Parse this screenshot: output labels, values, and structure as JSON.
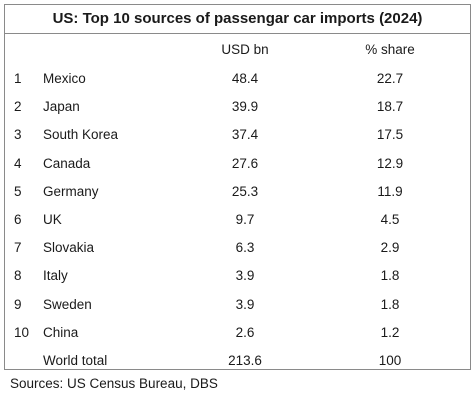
{
  "title": "US: Top 10 sources of passengar car imports (2024)",
  "columns": {
    "rank": "",
    "country": "",
    "usd": "USD bn",
    "share": "% share"
  },
  "rows": [
    {
      "rank": "1",
      "country": "Mexico",
      "usd": "48.4",
      "share": "22.7"
    },
    {
      "rank": "2",
      "country": "Japan",
      "usd": "39.9",
      "share": "18.7"
    },
    {
      "rank": "3",
      "country": "South Korea",
      "usd": "37.4",
      "share": "17.5"
    },
    {
      "rank": "4",
      "country": "Canada",
      "usd": "27.6",
      "share": "12.9"
    },
    {
      "rank": "5",
      "country": "Germany",
      "usd": "25.3",
      "share": "11.9"
    },
    {
      "rank": "6",
      "country": "UK",
      "usd": "9.7",
      "share": "4.5"
    },
    {
      "rank": "7",
      "country": "Slovakia",
      "usd": "6.3",
      "share": "2.9"
    },
    {
      "rank": "8",
      "country": "Italy",
      "usd": "3.9",
      "share": "1.8"
    },
    {
      "rank": "9",
      "country": "Sweden",
      "usd": "3.9",
      "share": "1.8"
    },
    {
      "rank": "10",
      "country": "China",
      "usd": "2.6",
      "share": "1.2"
    }
  ],
  "total": {
    "rank": "",
    "country": "World total",
    "usd": "213.6",
    "share": "100"
  },
  "source": "Sources: US Census Bureau, DBS"
}
